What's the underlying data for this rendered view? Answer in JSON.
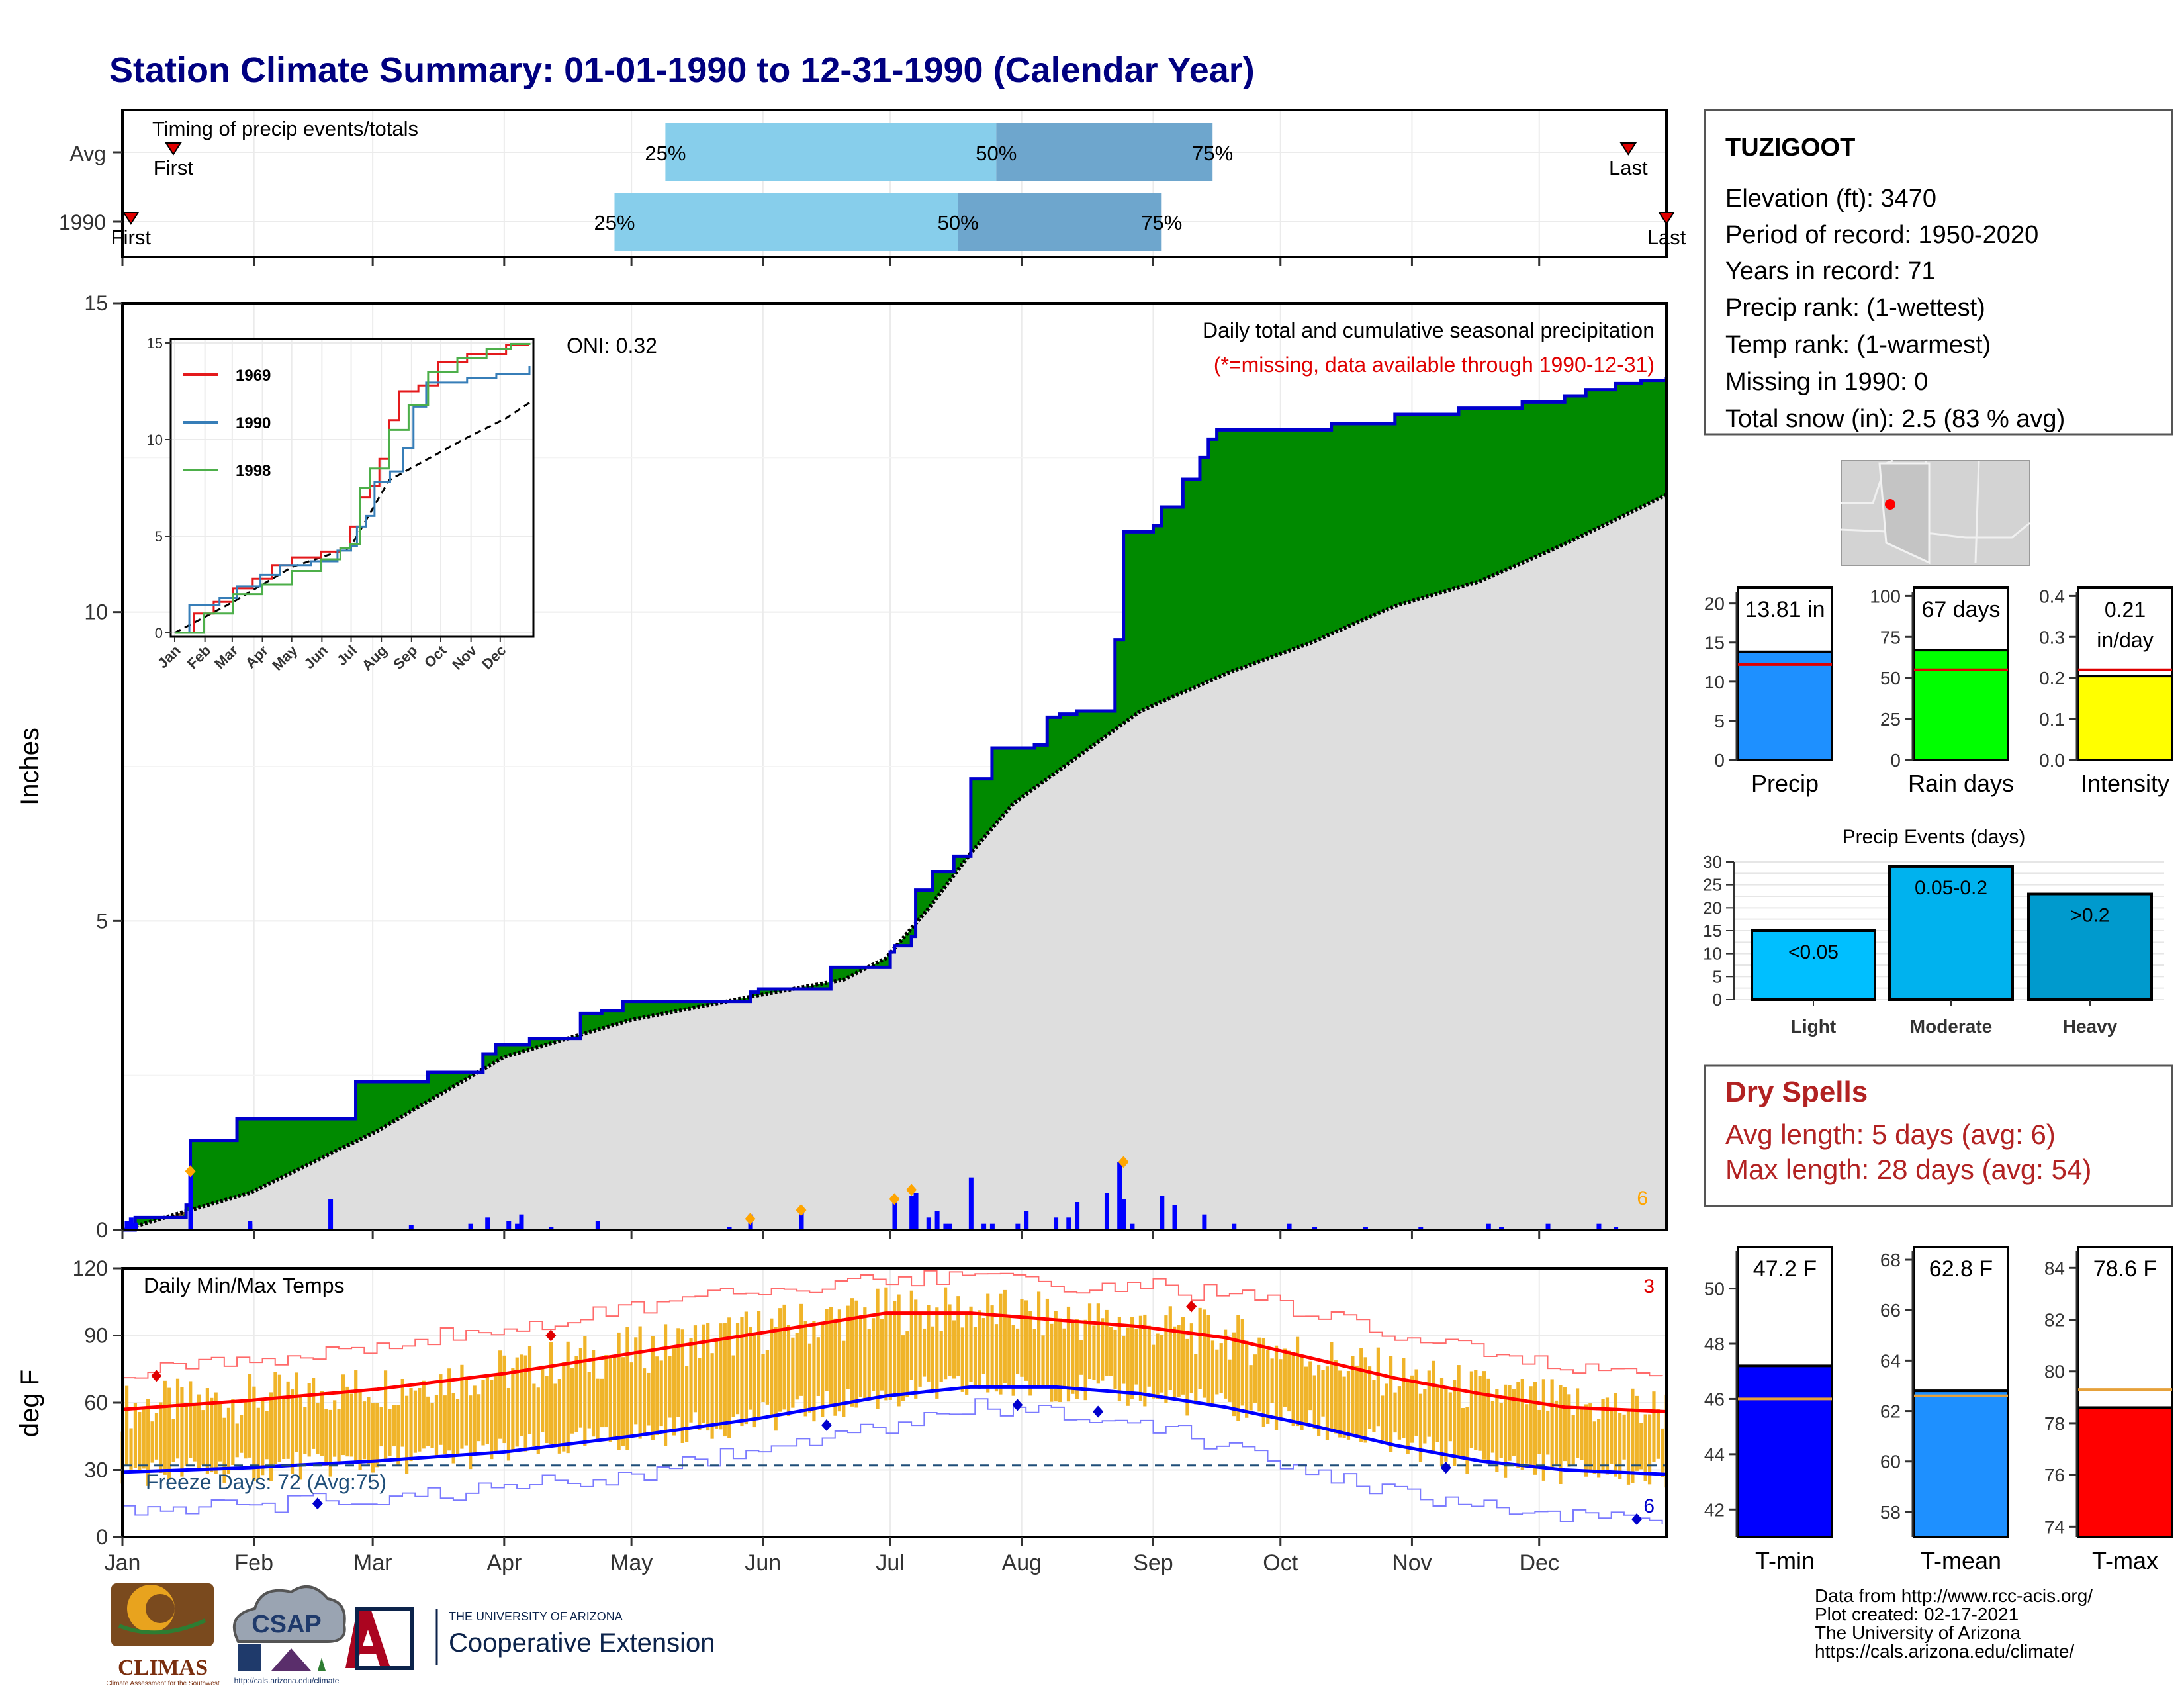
{
  "title": "Station Climate Summary: 01-01-1990 to 12-31-1990 (Calendar Year)",
  "months": [
    "Jan",
    "Feb",
    "Mar",
    "Apr",
    "May",
    "Jun",
    "Jul",
    "Aug",
    "Sep",
    "Oct",
    "Nov",
    "Dec"
  ],
  "timing": {
    "label": "Timing of precip events/totals",
    "rows": [
      {
        "name": "Avg",
        "first_label": "First",
        "last_label": "Last",
        "p25_label": "25%",
        "p50_label": "50%",
        "p75_label": "75%",
        "first_doy": 12,
        "p25_doy": 128,
        "p50_doy": 206,
        "p75_doy": 257,
        "last_doy": 355
      },
      {
        "name": "1990",
        "first_label": "First",
        "last_label": "Last",
        "p25_label": "25%",
        "p50_label": "50%",
        "p75_label": "75%",
        "first_doy": 2,
        "p25_doy": 116,
        "p50_doy": 197,
        "p75_doy": 245,
        "last_doy": 364
      }
    ],
    "color_q1": "#87ceeb",
    "color_q2": "#6ea6cd"
  },
  "station": {
    "name": "TUZIGOOT",
    "lines": [
      "Elevation (ft): 3470",
      "Period of record: 1950-2020",
      "Years in record: 71",
      "Precip rank:  (1-wettest)",
      "Temp rank:  (1-warmest)",
      "Missing in 1990: 0",
      "Total snow (in): 2.5 (83 % avg)"
    ]
  },
  "chart_data": [
    {
      "id": "precip",
      "type": "area",
      "ylabel": "Inches",
      "ylim": [
        0,
        15
      ],
      "yticks": [
        "0",
        "5",
        "10",
        "15"
      ],
      "subtitle": "Daily total and cumulative seasonal precipitation",
      "missing_note": "(*=missing, data available through 1990-12-31)",
      "oni": "ONI: 0.32",
      "corner_count": "6",
      "cumulative_1990": {
        "x": [
          0,
          3,
          15,
          16,
          27,
          46,
          55,
          64,
          72,
          85,
          88,
          96,
          108,
          113,
          118,
          120,
          140,
          148,
          150,
          158,
          167,
          170,
          178,
          181,
          182,
          186,
          187,
          191,
          196,
          200,
          205,
          215,
          218,
          221,
          225,
          234,
          236,
          243,
          245,
          250,
          254,
          256,
          258,
          262,
          270,
          285,
          300,
          315,
          330,
          340,
          345,
          352,
          358,
          364
        ],
        "y": [
          0,
          0.2,
          0.4,
          1.45,
          1.8,
          1.8,
          2.4,
          2.4,
          2.55,
          2.85,
          3.0,
          3.1,
          3.5,
          3.55,
          3.7,
          3.7,
          3.7,
          3.85,
          3.9,
          3.9,
          4.25,
          4.25,
          4.25,
          4.5,
          4.6,
          4.75,
          5.5,
          5.8,
          6.05,
          7.3,
          7.8,
          7.85,
          8.3,
          8.35,
          8.4,
          9.55,
          11.3,
          11.4,
          11.7,
          12.15,
          12.5,
          12.8,
          12.95,
          12.95,
          12.95,
          13.05,
          13.2,
          13.3,
          13.4,
          13.5,
          13.6,
          13.7,
          13.75,
          13.8
        ]
      },
      "cumulative_avg": {
        "x": [
          0,
          30,
          60,
          90,
          120,
          150,
          170,
          180,
          190,
          200,
          210,
          230,
          240,
          260,
          280,
          300,
          320,
          340,
          364
        ],
        "y": [
          0,
          0.6,
          1.6,
          2.8,
          3.4,
          3.8,
          4.05,
          4.4,
          5.2,
          6.1,
          6.9,
          7.9,
          8.4,
          9.0,
          9.5,
          10.1,
          10.5,
          11.1,
          11.9
        ]
      },
      "daily_totals": {
        "x": [
          1,
          2,
          3,
          16,
          30,
          30,
          49,
          68,
          82,
          86,
          91,
          93,
          94,
          101,
          112,
          143,
          148,
          160,
          182,
          186,
          187,
          190,
          192,
          194,
          195,
          200,
          203,
          205,
          211,
          213,
          220,
          223,
          225,
          232,
          235,
          236,
          238,
          245,
          248,
          255,
          262,
          275,
          281,
          293,
          306,
          322,
          325,
          336,
          348,
          352
        ],
        "y": [
          0.15,
          0.2,
          0.12,
          1.0,
          0.1,
          0.15,
          0.5,
          0.08,
          0.1,
          0.2,
          0.15,
          0.1,
          0.25,
          0.05,
          0.15,
          0.05,
          0.25,
          0.3,
          0.5,
          0.55,
          0.6,
          0.2,
          0.3,
          0.1,
          0.1,
          0.85,
          0.1,
          0.1,
          0.1,
          0.3,
          0.2,
          0.2,
          0.45,
          0.6,
          1.1,
          0.5,
          0.1,
          0.55,
          0.4,
          0.25,
          0.1,
          0.1,
          0.05,
          0.05,
          0.05,
          0.1,
          0.05,
          0.1,
          0.1,
          0.05
        ]
      },
      "extreme_days": {
        "x": [
          16,
          148,
          160,
          182,
          186,
          236
        ],
        "y": [
          0.95,
          0.18,
          0.32,
          0.5,
          0.65,
          1.1
        ]
      }
    },
    {
      "id": "temps",
      "type": "line",
      "ylabel": "deg F",
      "ylim": [
        0,
        120
      ],
      "yticks": [
        "0",
        "30",
        "60",
        "90",
        "120"
      ],
      "subtitle": "Daily Min/Max Temps",
      "freeze_label": "Freeze Days: 72 (Avg:75)",
      "freeze_line": 32,
      "corner_count_max": "3",
      "corner_count_min": "6",
      "avg_max": {
        "x": [
          0,
          30,
          60,
          90,
          120,
          150,
          180,
          200,
          220,
          240,
          260,
          280,
          300,
          320,
          340,
          364
        ],
        "y": [
          57,
          61,
          66,
          73,
          82,
          91,
          100,
          100,
          97,
          94,
          89,
          80,
          71,
          64,
          58,
          56
        ]
      },
      "avg_min": {
        "x": [
          0,
          30,
          60,
          90,
          120,
          150,
          180,
          200,
          220,
          240,
          260,
          280,
          300,
          320,
          340,
          364
        ],
        "y": [
          29,
          31,
          34,
          38,
          45,
          53,
          63,
          67,
          67,
          64,
          58,
          50,
          41,
          34,
          30,
          28
        ]
      },
      "record_max": {
        "x": [
          0,
          30,
          60,
          90,
          120,
          150,
          180,
          200,
          220,
          240,
          260,
          280,
          300,
          320,
          340,
          364
        ],
        "y": [
          73,
          78,
          85,
          94,
          103,
          110,
          115,
          116,
          113,
          112,
          108,
          100,
          90,
          82,
          76,
          74
        ]
      },
      "record_min": {
        "x": [
          0,
          30,
          60,
          90,
          120,
          150,
          180,
          200,
          220,
          240,
          260,
          280,
          300,
          320,
          340,
          364
        ],
        "y": [
          12,
          14,
          17,
          22,
          28,
          40,
          50,
          58,
          56,
          52,
          40,
          30,
          20,
          15,
          10,
          8
        ]
      },
      "max_points": {
        "x": [
          8,
          101,
          252
        ],
        "y": [
          72,
          90,
          103
        ]
      },
      "min_points": {
        "x": [
          46,
          166,
          211,
          230,
          312,
          357
        ],
        "y": [
          15,
          50,
          59,
          56,
          31,
          8
        ]
      },
      "range_color": "#f0b429"
    }
  ],
  "mini_chart": {
    "ylim": [
      0,
      15
    ],
    "yticks": [
      "0",
      "5",
      "10",
      "15"
    ],
    "legend": [
      {
        "name": "1969",
        "color": "#e41a1c",
        "x": [
          0,
          20,
          40,
          60,
          80,
          100,
          120,
          150,
          170,
          180,
          190,
          200,
          210,
          220,
          230,
          250,
          270,
          300,
          340,
          364
        ],
        "y": [
          0,
          1,
          1.6,
          2.3,
          2.8,
          3.5,
          3.9,
          4.2,
          4.4,
          5.5,
          7.0,
          7.6,
          9.0,
          11.0,
          12.5,
          12.8,
          14.0,
          14.4,
          14.9,
          14.9
        ]
      },
      {
        "name": "1990",
        "color": "#377eb8",
        "x": [
          0,
          15,
          46,
          64,
          88,
          108,
          140,
          167,
          181,
          187,
          196,
          205,
          221,
          234,
          245,
          258,
          300,
          330,
          364
        ],
        "y": [
          0,
          1.45,
          1.8,
          2.4,
          3.0,
          3.5,
          3.7,
          4.25,
          4.5,
          5.5,
          6.05,
          7.8,
          8.35,
          9.55,
          11.7,
          12.95,
          13.2,
          13.4,
          13.8
        ]
      },
      {
        "name": "1998",
        "color": "#4daf4a",
        "x": [
          0,
          30,
          60,
          90,
          120,
          150,
          170,
          180,
          190,
          200,
          220,
          240,
          260,
          290,
          320,
          345,
          364
        ],
        "y": [
          0,
          1.0,
          2.0,
          2.5,
          3.2,
          3.8,
          4.4,
          4.6,
          7.5,
          8.5,
          10.5,
          11.8,
          13.5,
          14.2,
          14.7,
          14.95,
          15.0
        ]
      }
    ],
    "avg": {
      "x": [
        0,
        60,
        120,
        180,
        220,
        260,
        300,
        340,
        364
      ],
      "y": [
        0,
        1.6,
        3.4,
        4.4,
        7.9,
        9.0,
        10.1,
        11.1,
        11.9
      ]
    }
  },
  "gauges": [
    {
      "name": "Precip",
      "value_label": "13.81 in",
      "value": 13.81,
      "avg": 12.2,
      "ylim": [
        0,
        22
      ],
      "yticks": [
        "0",
        "5",
        "10",
        "15",
        "20"
      ],
      "color": "#1e90ff"
    },
    {
      "name": "Rain days",
      "value_label": "67 days",
      "value": 67,
      "avg": 55,
      "ylim": [
        0,
        105
      ],
      "yticks": [
        "0",
        "25",
        "50",
        "75",
        "100"
      ],
      "color": "#00ff00"
    },
    {
      "name": "Intensity",
      "value_label_1": "0.21",
      "value_label_2": "in/day",
      "value": 0.205,
      "avg": 0.22,
      "ylim": [
        0,
        0.42
      ],
      "yticks": [
        "0.0",
        "0.1",
        "0.2",
        "0.3",
        "0.4"
      ],
      "color": "#ffff00"
    }
  ],
  "events": {
    "title": "Precip Events (days)",
    "ylim": [
      0,
      30
    ],
    "yticks": [
      "0",
      "5",
      "10",
      "15",
      "20",
      "25",
      "30"
    ],
    "bars": [
      {
        "category": "Light",
        "label": "<0.05",
        "value": 15,
        "color": "#00bfff"
      },
      {
        "category": "Moderate",
        "label": "0.05-0.2",
        "value": 29,
        "color": "#00b2ee"
      },
      {
        "category": "Heavy",
        "label": ">0.2",
        "value": 23,
        "color": "#009acd"
      }
    ]
  },
  "dry_spells": {
    "title": "Dry Spells",
    "avg_line": "Avg length: 5 days (avg: 6)",
    "max_line": "Max length: 28 days (avg: 54)"
  },
  "temp_gauges": [
    {
      "name": "T-min",
      "value_label": "47.2 F",
      "value": 47.2,
      "avg": 46.0,
      "ylim": [
        41,
        51.5
      ],
      "yticks": [
        "42",
        "44",
        "46",
        "48",
        "50"
      ],
      "color": "#0000ff"
    },
    {
      "name": "T-mean",
      "value_label": "62.8 F",
      "value": 62.8,
      "avg": 62.6,
      "ylim": [
        57,
        68.5
      ],
      "yticks": [
        "58",
        "60",
        "62",
        "64",
        "66",
        "68"
      ],
      "color": "#1e90ff"
    },
    {
      "name": "T-max",
      "value_label": "78.6 F",
      "value": 78.6,
      "avg": 79.3,
      "ylim": [
        73.6,
        84.8
      ],
      "yticks": [
        "74",
        "76",
        "78",
        "80",
        "82",
        "84"
      ],
      "color": "#ff0000"
    }
  ],
  "logos": {
    "climas": "CLIMAS",
    "climas_sub": "Climate Assessment for the Southwest",
    "csap": "CSAP",
    "csap_url": "http://cals.arizona.edu/climate",
    "ua_top": "THE UNIVERSITY OF ARIZONA",
    "ua_bottom": "Cooperative Extension"
  },
  "credits": [
    "Data from http://www.rcc-acis.org/",
    "Plot created: 02-17-2021",
    "The University of Arizona",
    "https://cals.arizona.edu/climate/"
  ]
}
